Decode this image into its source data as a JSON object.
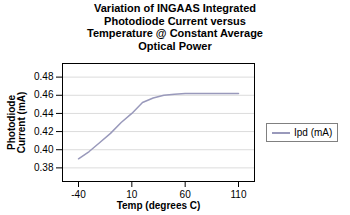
{
  "chart_data": {
    "type": "line",
    "title": "Variation of INGAAS Integrated\nPhotodiode Current versus\nTemperature @ Constant Average\nOptical Power",
    "xlabel": "Temp (degrees C)",
    "ylabel": "Photodiode\nCurrent (mA)",
    "x": [
      -40,
      -30,
      -20,
      -10,
      0,
      10,
      20,
      30,
      40,
      50,
      60,
      70,
      80,
      90,
      100,
      110
    ],
    "series": [
      {
        "name": "Ipd (mA)",
        "color": "#9999bb",
        "values": [
          0.39,
          0.398,
          0.408,
          0.418,
          0.43,
          0.44,
          0.452,
          0.457,
          0.46,
          0.461,
          0.462,
          0.462,
          0.462,
          0.462,
          0.462,
          0.462
        ]
      }
    ],
    "xlim": [
      -55,
      125
    ],
    "ylim": [
      0.365,
      0.495
    ],
    "xticks": [
      -40,
      10,
      60,
      110
    ],
    "yticks": [
      0.38,
      {
        "value": 0.4,
        "label": "0.40"
      },
      0.42,
      0.44,
      0.46,
      0.48
    ],
    "grid": true,
    "legend": "right"
  }
}
